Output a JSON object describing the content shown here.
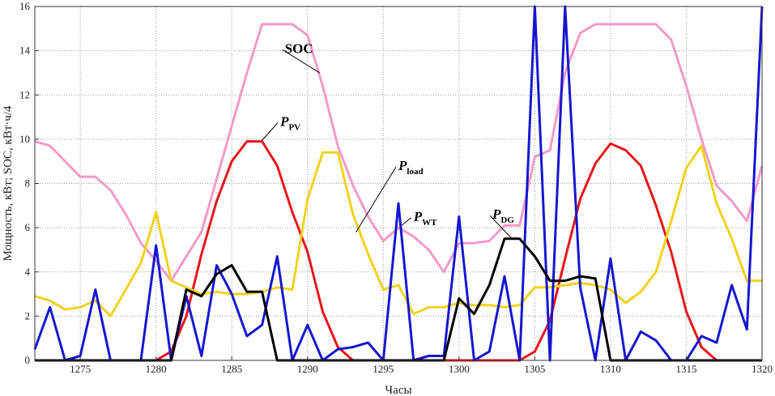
{
  "chart_data": {
    "type": "line",
    "title": "",
    "xlabel": "Часы",
    "ylabel": "Мощность, кВт;  SOC, кВт·ч/4",
    "xlim": [
      1272,
      1320
    ],
    "ylim": [
      0,
      16
    ],
    "xticks": [
      1275,
      1280,
      1285,
      1290,
      1295,
      1300,
      1305,
      1310,
      1315,
      1320
    ],
    "yticks": [
      0,
      2,
      4,
      6,
      8,
      10,
      12,
      14,
      16
    ],
    "grid": true,
    "series": [
      {
        "id": "soc",
        "name": "SOC",
        "color": "#f39ac8",
        "x": [
          1272,
          1273,
          1274,
          1275,
          1276,
          1277,
          1278,
          1279,
          1280,
          1281,
          1282,
          1283,
          1284,
          1285,
          1286,
          1287,
          1288,
          1289,
          1290,
          1291,
          1292,
          1293,
          1294,
          1295,
          1296,
          1297,
          1298,
          1299,
          1300,
          1301,
          1302,
          1303,
          1304,
          1305,
          1306,
          1307,
          1308,
          1309,
          1310,
          1311,
          1312,
          1313,
          1314,
          1315,
          1316,
          1317,
          1318,
          1319,
          1320
        ],
        "y": [
          9.9,
          9.7,
          9.0,
          8.3,
          8.3,
          7.7,
          6.6,
          5.3,
          4.5,
          3.6,
          4.7,
          5.8,
          8.2,
          10.6,
          13.0,
          15.2,
          15.2,
          15.2,
          14.7,
          12.4,
          9.7,
          7.9,
          6.5,
          5.4,
          6.0,
          5.6,
          5.0,
          4.0,
          5.3,
          5.3,
          5.4,
          6.1,
          6.1,
          9.2,
          9.5,
          13.0,
          14.8,
          15.2,
          15.2,
          15.2,
          15.2,
          15.2,
          14.5,
          12.4,
          10.0,
          7.9,
          7.2,
          6.3,
          8.8
        ]
      },
      {
        "id": "pv",
        "name": "P_PV",
        "color": "#e8141b",
        "x": [
          1272,
          1273,
          1274,
          1275,
          1276,
          1277,
          1278,
          1279,
          1280,
          1281,
          1282,
          1283,
          1284,
          1285,
          1286,
          1287,
          1288,
          1289,
          1290,
          1291,
          1292,
          1293,
          1294,
          1295,
          1296,
          1297,
          1298,
          1299,
          1300,
          1301,
          1302,
          1303,
          1304,
          1305,
          1306,
          1307,
          1308,
          1309,
          1310,
          1311,
          1312,
          1313,
          1314,
          1315,
          1316,
          1317,
          1318,
          1319,
          1320
        ],
        "y": [
          0,
          0,
          0,
          0,
          0,
          0,
          0,
          0,
          0,
          0.4,
          2.0,
          4.8,
          7.2,
          9.0,
          9.9,
          9.9,
          8.8,
          6.7,
          4.9,
          2.2,
          0.6,
          0,
          0,
          0,
          0,
          0,
          0,
          0,
          0,
          0,
          0,
          0,
          0,
          0.4,
          1.8,
          4.6,
          7.3,
          8.9,
          9.8,
          9.5,
          8.8,
          7.0,
          4.9,
          2.2,
          0.6,
          0,
          0,
          0,
          0
        ]
      },
      {
        "id": "load",
        "name": "P_load",
        "color": "#f2d21a",
        "x": [
          1272,
          1273,
          1274,
          1275,
          1276,
          1277,
          1278,
          1279,
          1280,
          1281,
          1282,
          1283,
          1284,
          1285,
          1286,
          1287,
          1288,
          1289,
          1290,
          1291,
          1292,
          1293,
          1294,
          1295,
          1296,
          1297,
          1298,
          1299,
          1300,
          1301,
          1302,
          1303,
          1304,
          1305,
          1306,
          1307,
          1308,
          1309,
          1310,
          1311,
          1312,
          1313,
          1314,
          1315,
          1316,
          1317,
          1318,
          1319,
          1320
        ],
        "y": [
          2.9,
          2.7,
          2.3,
          2.4,
          2.7,
          2.0,
          3.2,
          4.4,
          6.7,
          3.6,
          3.3,
          3.0,
          3.1,
          3.0,
          3.0,
          3.1,
          3.3,
          3.2,
          7.3,
          9.4,
          9.4,
          6.6,
          4.8,
          3.2,
          3.4,
          2.1,
          2.4,
          2.4,
          2.6,
          2.5,
          2.5,
          2.4,
          2.5,
          3.3,
          3.3,
          3.4,
          3.5,
          3.4,
          3.2,
          2.6,
          3.1,
          4.0,
          6.3,
          8.7,
          9.7,
          7.1,
          5.5,
          3.6,
          3.6
        ]
      },
      {
        "id": "wt",
        "name": "P_WT",
        "color": "#1616d0",
        "x": [
          1272,
          1273,
          1274,
          1275,
          1276,
          1277,
          1278,
          1279,
          1280,
          1281,
          1282,
          1283,
          1284,
          1285,
          1286,
          1287,
          1288,
          1289,
          1290,
          1291,
          1292,
          1293,
          1294,
          1295,
          1296,
          1297,
          1298,
          1299,
          1300,
          1301,
          1302,
          1303,
          1304,
          1305,
          1306,
          1307,
          1308,
          1309,
          1310,
          1311,
          1312,
          1313,
          1314,
          1315,
          1316,
          1317,
          1318,
          1319,
          1320
        ],
        "y": [
          0.5,
          2.4,
          0,
          0.2,
          3.2,
          0,
          0,
          0,
          5.2,
          0,
          2.9,
          0.2,
          4.3,
          3.0,
          1.1,
          1.6,
          4.7,
          0,
          1.6,
          0,
          0.5,
          0.6,
          0.8,
          0,
          7.1,
          0,
          0.2,
          0.2,
          6.5,
          0,
          0.4,
          3.8,
          0,
          16,
          0,
          16,
          3.3,
          0,
          4.6,
          0,
          1.3,
          0.9,
          0,
          0,
          1.1,
          0.8,
          3.4,
          1.4,
          16
        ]
      },
      {
        "id": "dg",
        "name": "P_DG",
        "color": "#000000",
        "x": [
          1272,
          1273,
          1274,
          1275,
          1276,
          1277,
          1278,
          1279,
          1280,
          1281,
          1282,
          1283,
          1284,
          1285,
          1286,
          1287,
          1288,
          1289,
          1290,
          1291,
          1292,
          1293,
          1294,
          1295,
          1296,
          1297,
          1298,
          1299,
          1300,
          1301,
          1302,
          1303,
          1304,
          1305,
          1306,
          1307,
          1308,
          1309,
          1310,
          1311,
          1312,
          1313,
          1314,
          1315,
          1316,
          1317,
          1318,
          1319,
          1320
        ],
        "y": [
          0,
          0,
          0,
          0,
          0,
          0,
          0,
          0,
          0,
          0,
          3.2,
          2.9,
          3.9,
          4.3,
          3.1,
          3.1,
          0,
          0,
          0,
          0,
          0,
          0,
          0,
          0,
          0,
          0,
          0,
          0,
          2.8,
          2.1,
          3.4,
          5.5,
          5.5,
          4.7,
          3.6,
          3.6,
          3.8,
          3.7,
          0,
          0,
          0,
          0,
          0,
          0,
          0,
          0,
          0,
          0,
          0
        ]
      }
    ],
    "annotations": [
      {
        "id": "soc",
        "label": "SOC",
        "sub": ""
      },
      {
        "id": "pv",
        "label": "P",
        "sub": "PV"
      },
      {
        "id": "load",
        "label": "P",
        "sub": "load"
      },
      {
        "id": "wt",
        "label": "P",
        "sub": "WT"
      },
      {
        "id": "dg",
        "label": "P",
        "sub": "DG"
      }
    ]
  }
}
